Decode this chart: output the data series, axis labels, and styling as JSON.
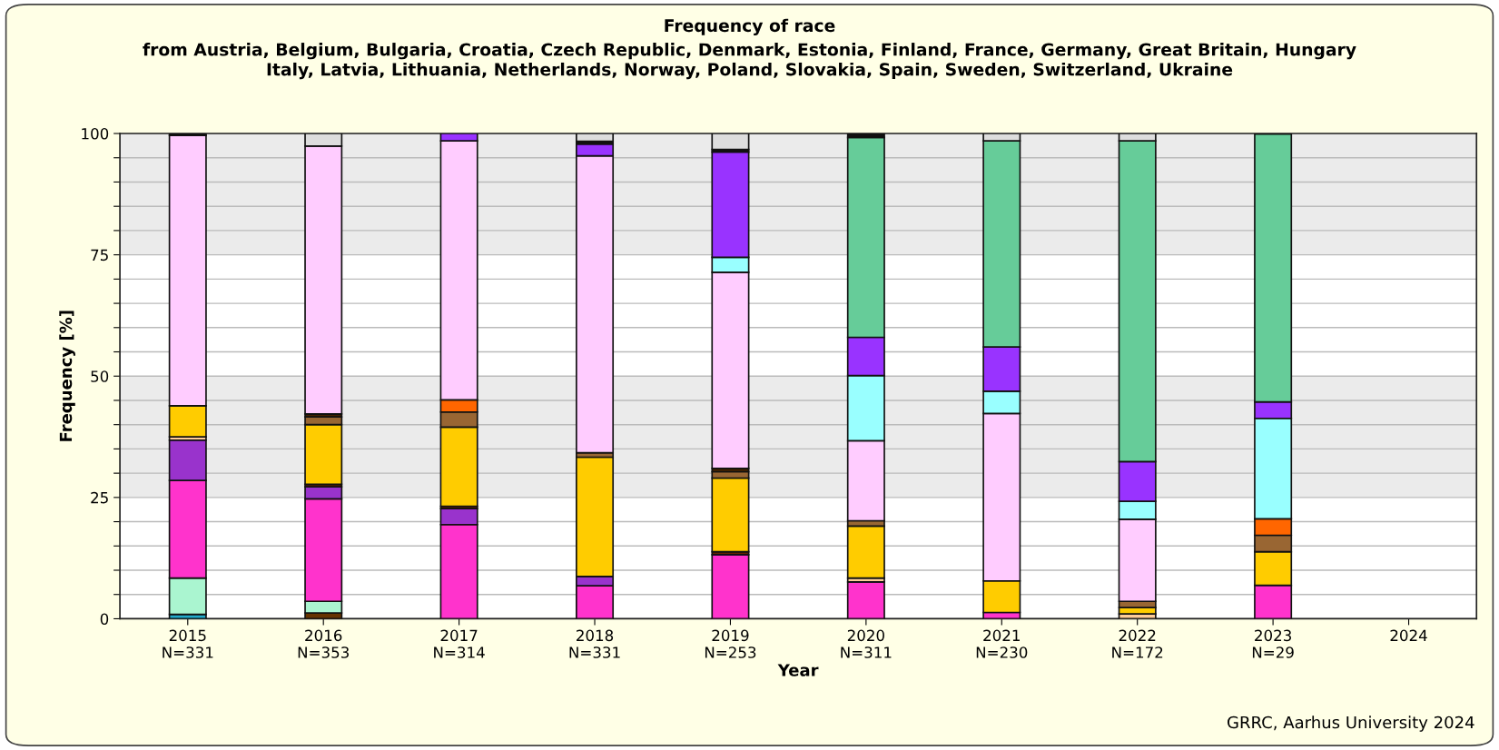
{
  "chart_data": {
    "type": "bar",
    "stacked": true,
    "title": "Frequency of race",
    "subtitle": "from Austria, Belgium, Bulgaria, Croatia, Czech Republic, Denmark, Estonia, Finland, France, Germany, Great Britain, Hungary\nItaly, Latvia, Lithuania, Netherlands, Norway, Poland, Slovakia, Spain, Sweden, Switzerland, Ukraine",
    "xlabel": "Year",
    "ylabel": "Frequency [%]",
    "annotations": [
      "GRRC, Aarhus University 2024"
    ],
    "categories": [
      "2015\nN=331",
      "2016\nN=353",
      "2017\nN=314",
      "2018\nN=331",
      "2019\nN=253",
      "2020\nN=311",
      "2021\nN=230",
      "2022\nN=172",
      "2023\nN=29",
      "2024"
    ],
    "ylim": [
      0,
      100
    ],
    "yticks": [
      0,
      {
        "value": 5,
        "label": null
      },
      {
        "value": 10,
        "label": null
      },
      {
        "value": 15,
        "label": null
      },
      {
        "value": 20,
        "label": null
      },
      25,
      {
        "value": 30,
        "label": null
      },
      {
        "value": 35,
        "label": null
      },
      {
        "value": 40,
        "label": null
      },
      {
        "value": 45,
        "label": null
      },
      50,
      {
        "value": 55,
        "label": null
      },
      {
        "value": 60,
        "label": null
      },
      {
        "value": 65,
        "label": null
      },
      {
        "value": 70,
        "label": null
      },
      75,
      {
        "value": 80,
        "label": null
      },
      {
        "value": 85,
        "label": null
      },
      {
        "value": 90,
        "label": null
      },
      {
        "value": 95,
        "label": null
      },
      100
    ],
    "grid": "y",
    "series": [
      {
        "color": "#22aacc",
        "values": [
          0.9,
          null,
          null,
          null,
          null,
          null,
          null,
          null,
          null,
          null
        ]
      },
      {
        "color": "#663300",
        "values": [
          null,
          1.2,
          null,
          null,
          null,
          null,
          null,
          null,
          null,
          null
        ]
      },
      {
        "color": "#aaf5d0",
        "values": [
          7.5,
          2.4,
          null,
          null,
          null,
          null,
          null,
          null,
          null,
          null
        ]
      },
      {
        "color": "#ff33cc",
        "values": [
          20.1,
          21.1,
          19.4,
          6.8,
          13.2,
          7.6,
          1.3,
          null,
          6.9,
          null
        ]
      },
      {
        "color": "#9933cc",
        "values": [
          8.3,
          2.5,
          3.3,
          1.9,
          null,
          null,
          null,
          null,
          null,
          null
        ]
      },
      {
        "color": "#662200",
        "values": [
          null,
          0.5,
          0.5,
          null,
          0.6,
          null,
          null,
          null,
          null,
          null
        ]
      },
      {
        "color": "#ffcc99",
        "values": [
          0.7,
          null,
          null,
          null,
          null,
          0.8,
          null,
          1.0,
          null,
          null
        ]
      },
      {
        "color": "#ffcc00",
        "values": [
          6.4,
          12.3,
          16.3,
          24.6,
          15.2,
          10.7,
          6.5,
          1.3,
          6.9,
          null
        ]
      },
      {
        "color": "#996633",
        "values": [
          null,
          1.6,
          3.1,
          0.9,
          1.3,
          1.1,
          null,
          1.3,
          3.4,
          null
        ]
      },
      {
        "color": "#442200",
        "values": [
          null,
          0.6,
          null,
          null,
          0.7,
          null,
          null,
          null,
          null,
          null
        ]
      },
      {
        "color": "#ff6600",
        "values": [
          null,
          null,
          2.5,
          null,
          null,
          null,
          null,
          null,
          3.4,
          null
        ]
      },
      {
        "color": "#ffccff",
        "values": [
          55.7,
          55.2,
          53.4,
          61.2,
          40.4,
          16.5,
          34.5,
          16.9,
          null,
          null
        ]
      },
      {
        "color": "#99ffff",
        "values": [
          null,
          null,
          null,
          null,
          3.1,
          13.4,
          4.6,
          3.7,
          20.7,
          null
        ]
      },
      {
        "color": "#9933ff",
        "values": [
          null,
          null,
          1.5,
          2.4,
          21.7,
          7.9,
          9.1,
          8.2,
          3.4,
          null
        ]
      },
      {
        "color": "#66cc99",
        "values": [
          null,
          null,
          null,
          null,
          null,
          41.2,
          42.5,
          66.1,
          55.2,
          null
        ]
      },
      {
        "color": "#111111",
        "values": [
          0.4,
          null,
          null,
          0.6,
          0.5,
          0.8,
          null,
          null,
          null,
          null
        ]
      },
      {
        "color": "#dddddd",
        "values": [
          null,
          2.6,
          null,
          1.6,
          3.3,
          null,
          1.5,
          1.5,
          null,
          null
        ]
      }
    ]
  }
}
